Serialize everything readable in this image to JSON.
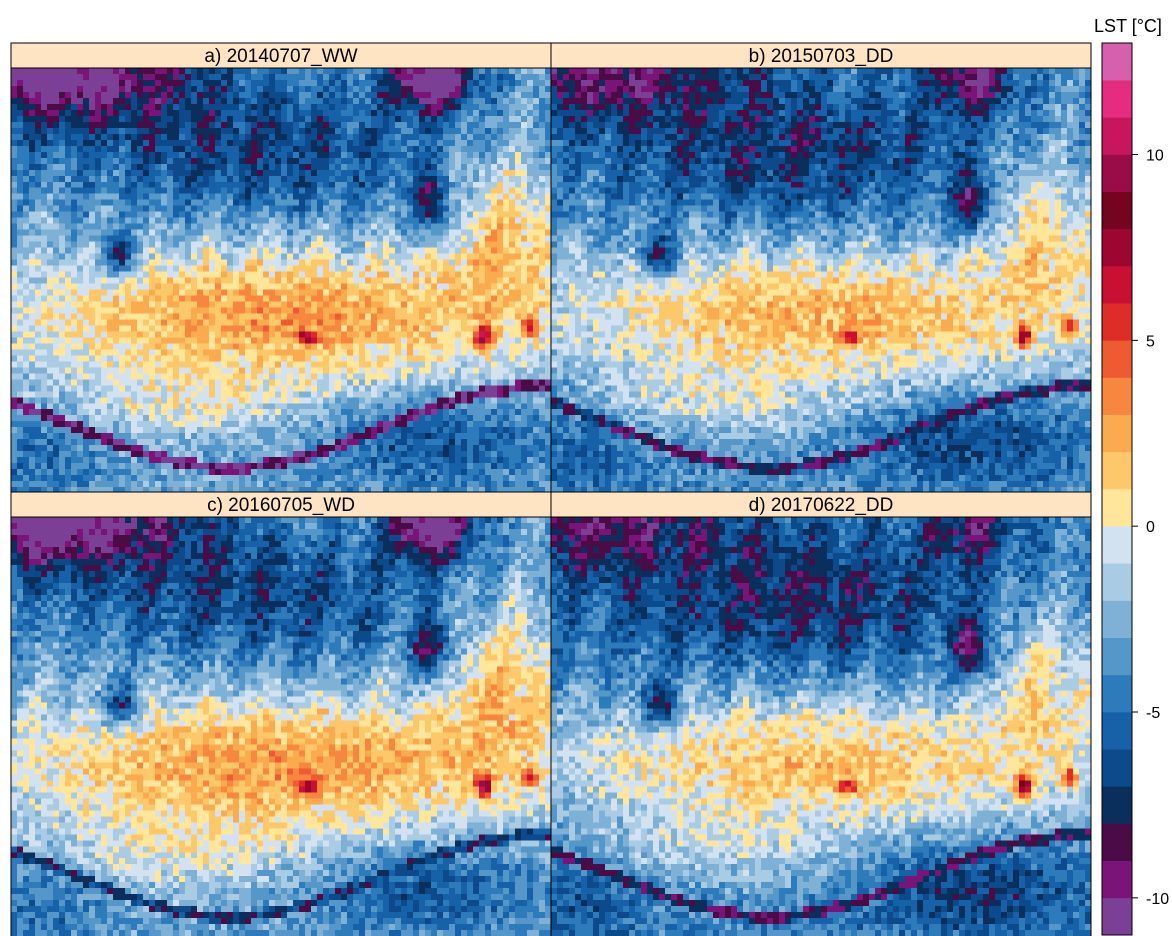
{
  "chart_data": {
    "type": "heatmap",
    "title": "",
    "colorbar": {
      "title": "LST [°C]",
      "ticks": [
        10,
        5,
        0,
        -5,
        -10
      ],
      "tick_labels": [
        "10",
        "5",
        "0",
        "-5",
        "-10"
      ],
      "range": [
        -11,
        13
      ],
      "bins": [
        {
          "from": -11,
          "to": -10,
          "color": "#7b3f96"
        },
        {
          "from": -10,
          "to": -9,
          "color": "#7a1478"
        },
        {
          "from": -9,
          "to": -8,
          "color": "#4a0b46"
        },
        {
          "from": -8,
          "to": -7,
          "color": "#0a2f5c"
        },
        {
          "from": -7,
          "to": -6,
          "color": "#0d4a8c"
        },
        {
          "from": -6,
          "to": -5,
          "color": "#1761a8"
        },
        {
          "from": -5,
          "to": -4,
          "color": "#2e7bbb"
        },
        {
          "from": -4,
          "to": -3,
          "color": "#5597c8"
        },
        {
          "from": -3,
          "to": -2,
          "color": "#7fb1d6"
        },
        {
          "from": -2,
          "to": -1,
          "color": "#a9cbe3"
        },
        {
          "from": -1,
          "to": 0,
          "color": "#d2e2f0"
        },
        {
          "from": 0,
          "to": 1,
          "color": "#ffe69a"
        },
        {
          "from": 1,
          "to": 2,
          "color": "#fdc86a"
        },
        {
          "from": 2,
          "to": 3,
          "color": "#fbab4f"
        },
        {
          "from": 3,
          "to": 4,
          "color": "#f7873e"
        },
        {
          "from": 4,
          "to": 5,
          "color": "#ee5a31"
        },
        {
          "from": 5,
          "to": 6,
          "color": "#de2c26"
        },
        {
          "from": 6,
          "to": 7,
          "color": "#c90f32"
        },
        {
          "from": 7,
          "to": 8,
          "color": "#9e0632"
        },
        {
          "from": 8,
          "to": 9,
          "color": "#750420"
        },
        {
          "from": 9,
          "to": 10,
          "color": "#9a0c48"
        },
        {
          "from": 10,
          "to": 11,
          "color": "#c7155e"
        },
        {
          "from": 11,
          "to": 12,
          "color": "#e52c80"
        },
        {
          "from": 12,
          "to": 13,
          "color": "#d65fae"
        }
      ]
    },
    "panels": [
      {
        "label": "a) 20140707_WW",
        "variant": 0
      },
      {
        "label": "b) 20150703_DD",
        "variant": 1
      },
      {
        "label": "c) 20160705_WD",
        "variant": 2
      },
      {
        "label": "d) 20170622_DD",
        "variant": 3
      }
    ],
    "strip_color": "#ffe4c4",
    "grid": false
  }
}
